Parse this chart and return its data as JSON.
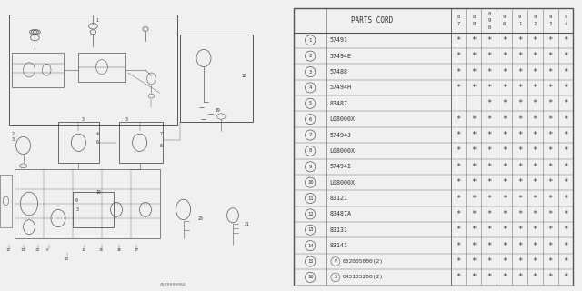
{
  "bg_color": "#f0f0f0",
  "table_bg": "#f0f0f0",
  "table_header": "PARTS CORD",
  "year_columns": [
    "8\n7",
    "8\n8",
    "8\n9\n0",
    "9\n0",
    "9\n1",
    "9\n2",
    "9\n3",
    "9\n4"
  ],
  "year_labels_raw": [
    "87",
    "88",
    "890",
    "90",
    "91",
    "92",
    "93",
    "94"
  ],
  "rows": [
    {
      "num": "1",
      "part": "57491",
      "stars": [
        1,
        1,
        1,
        1,
        1,
        1,
        1,
        1
      ],
      "prefix": ""
    },
    {
      "num": "2",
      "part": "57494E",
      "stars": [
        1,
        1,
        1,
        1,
        1,
        1,
        1,
        1
      ],
      "prefix": ""
    },
    {
      "num": "3",
      "part": "57488",
      "stars": [
        1,
        1,
        1,
        1,
        1,
        1,
        1,
        1
      ],
      "prefix": ""
    },
    {
      "num": "4",
      "part": "57494H",
      "stars": [
        1,
        1,
        1,
        1,
        1,
        1,
        1,
        1
      ],
      "prefix": ""
    },
    {
      "num": "5",
      "part": "83487",
      "stars": [
        0,
        0,
        1,
        1,
        1,
        1,
        1,
        1
      ],
      "prefix": ""
    },
    {
      "num": "6",
      "part": "L08000X",
      "stars": [
        1,
        1,
        1,
        1,
        1,
        1,
        1,
        1
      ],
      "prefix": ""
    },
    {
      "num": "7",
      "part": "57494J",
      "stars": [
        1,
        1,
        1,
        1,
        1,
        1,
        1,
        1
      ],
      "prefix": ""
    },
    {
      "num": "8",
      "part": "L08000X",
      "stars": [
        1,
        1,
        1,
        1,
        1,
        1,
        1,
        1
      ],
      "prefix": ""
    },
    {
      "num": "9",
      "part": "57494I",
      "stars": [
        1,
        1,
        1,
        1,
        1,
        1,
        1,
        1
      ],
      "prefix": ""
    },
    {
      "num": "10",
      "part": "L08000X",
      "stars": [
        1,
        1,
        1,
        1,
        1,
        1,
        1,
        1
      ],
      "prefix": ""
    },
    {
      "num": "11",
      "part": "83121",
      "stars": [
        1,
        1,
        1,
        1,
        1,
        1,
        1,
        1
      ],
      "prefix": ""
    },
    {
      "num": "12",
      "part": "83487A",
      "stars": [
        1,
        1,
        1,
        1,
        1,
        1,
        1,
        1
      ],
      "prefix": ""
    },
    {
      "num": "13",
      "part": "83131",
      "stars": [
        1,
        1,
        1,
        1,
        1,
        1,
        1,
        1
      ],
      "prefix": ""
    },
    {
      "num": "14",
      "part": "83141",
      "stars": [
        1,
        1,
        1,
        1,
        1,
        1,
        1,
        1
      ],
      "prefix": ""
    },
    {
      "num": "15",
      "part": "032005000(2)",
      "stars": [
        1,
        1,
        1,
        1,
        1,
        1,
        1,
        1
      ],
      "prefix": "V"
    },
    {
      "num": "16",
      "part": "043105200(2)",
      "stars": [
        1,
        1,
        1,
        1,
        1,
        1,
        1,
        1
      ],
      "prefix": "S"
    }
  ],
  "code": "A580000084",
  "lc": "#666666",
  "tc": "#333333",
  "sc": "#444444",
  "border_color": "#555555"
}
